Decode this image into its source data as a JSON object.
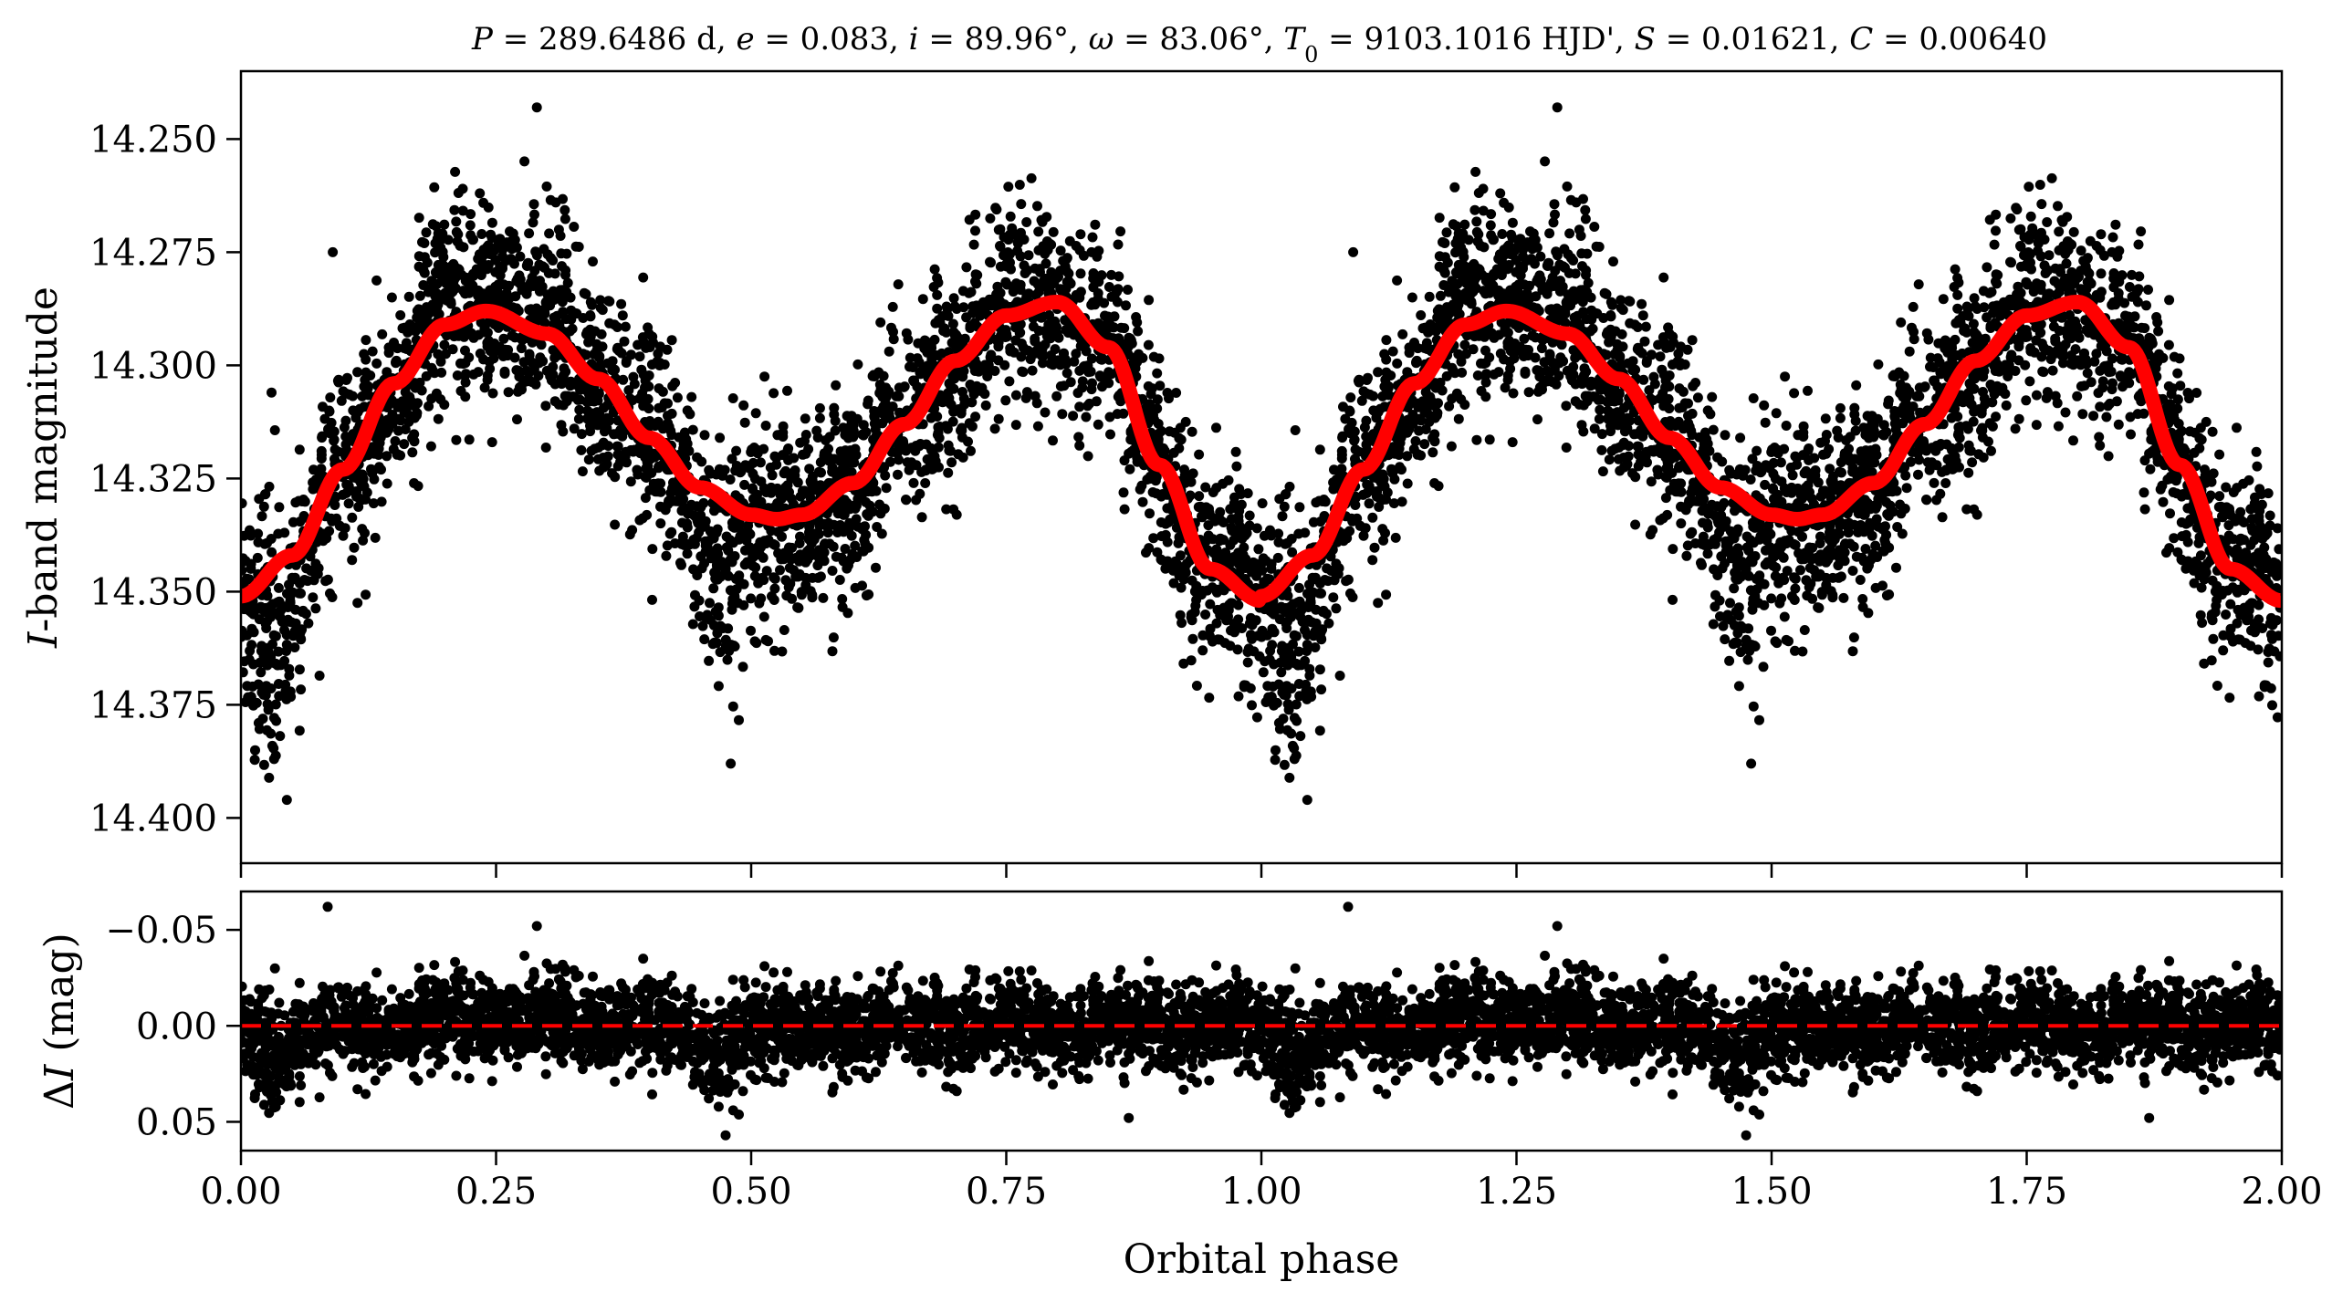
{
  "chart_data": [
    {
      "type": "scatter",
      "panel": "light-curve",
      "title": "P = 289.6486 d, e = 0.083, i = 89.96°, ω = 83.06°, T0 = 9103.1016 HJD', S = 0.01621, C = 0.00640",
      "xlabel": "",
      "ylabel": "I-band magnitude",
      "xlim": [
        0.0,
        2.0
      ],
      "ylim": [
        14.41,
        14.235
      ],
      "y_inverted": true,
      "x_ticks": [
        0.0,
        0.25,
        0.5,
        0.75,
        1.0,
        1.25,
        1.5,
        1.75,
        2.0
      ],
      "y_ticks": [
        14.25,
        14.275,
        14.3,
        14.325,
        14.35,
        14.375,
        14.4
      ],
      "y_tick_labels": [
        "14.250",
        "14.275",
        "14.300",
        "14.325",
        "14.350",
        "14.375",
        "14.400"
      ],
      "series": [
        {
          "kind": "points",
          "color": "#000000",
          "description_values": "phase-folded observations, scatter ~0.03 mag around model",
          "x": [
            0.0,
            0.05,
            0.1,
            0.15,
            0.2,
            0.25,
            0.3,
            0.35,
            0.4,
            0.45,
            0.5,
            0.55,
            0.6,
            0.65,
            0.7,
            0.75,
            0.8,
            0.85,
            0.9,
            0.95,
            1.0
          ],
          "y": [
            14.35,
            14.34,
            14.32,
            14.3,
            14.29,
            14.288,
            14.292,
            14.302,
            14.315,
            14.326,
            14.333,
            14.331,
            14.322,
            14.307,
            14.293,
            14.286,
            14.288,
            14.302,
            14.326,
            14.347,
            14.352
          ]
        },
        {
          "kind": "model",
          "color": "#ff0000",
          "x": [
            0.0,
            0.05,
            0.1,
            0.15,
            0.2,
            0.24,
            0.3,
            0.35,
            0.4,
            0.45,
            0.5,
            0.525,
            0.55,
            0.6,
            0.65,
            0.7,
            0.75,
            0.8,
            0.85,
            0.9,
            0.95,
            1.0
          ],
          "y": [
            14.351,
            14.342,
            14.323,
            14.304,
            14.291,
            14.288,
            14.293,
            14.303,
            14.316,
            14.327,
            14.333,
            14.334,
            14.333,
            14.326,
            14.313,
            14.299,
            14.289,
            14.286,
            14.296,
            14.322,
            14.345,
            14.352
          ]
        }
      ],
      "outliers": [
        {
          "x": 0.29,
          "y": 14.243
        },
        {
          "x": 1.29,
          "y": 14.243
        },
        {
          "x": 0.09,
          "y": 14.275
        },
        {
          "x": 1.09,
          "y": 14.275
        },
        {
          "x": 0.045,
          "y": 14.396
        },
        {
          "x": 1.045,
          "y": 14.396
        },
        {
          "x": 0.03,
          "y": 14.306
        },
        {
          "x": 0.48,
          "y": 14.388
        },
        {
          "x": 1.48,
          "y": 14.388
        }
      ]
    },
    {
      "type": "scatter",
      "panel": "residuals",
      "title": "",
      "xlabel": "Orbital phase",
      "ylabel": "ΔI (mag)",
      "xlim": [
        0.0,
        2.0
      ],
      "ylim": [
        0.065,
        -0.07
      ],
      "y_inverted": true,
      "x_ticks": [
        0.0,
        0.25,
        0.5,
        0.75,
        1.0,
        1.25,
        1.5,
        1.75,
        2.0
      ],
      "x_tick_labels": [
        "0.00",
        "0.25",
        "0.50",
        "0.75",
        "1.00",
        "1.25",
        "1.50",
        "1.75",
        "2.00"
      ],
      "y_ticks": [
        -0.05,
        0.0,
        0.05
      ],
      "y_tick_labels": [
        "−0.05",
        "0.00",
        "0.05"
      ],
      "series": [
        {
          "kind": "points",
          "color": "#000000",
          "x": [
            0.0,
            0.25,
            0.5,
            0.75,
            1.0,
            1.25,
            1.5,
            1.75,
            2.0
          ],
          "y": [
            0.0,
            0.0,
            0.0,
            0.0,
            0.0,
            0.0,
            0.0,
            0.0,
            0.0
          ],
          "scatter_range": [
            -0.035,
            0.045
          ]
        },
        {
          "kind": "zero-line",
          "color": "#ff0000",
          "style": "dashed",
          "y": 0.0
        }
      ],
      "outliers": [
        {
          "x": 0.085,
          "y": -0.062
        },
        {
          "x": 1.085,
          "y": -0.062
        },
        {
          "x": 0.29,
          "y": -0.052
        },
        {
          "x": 1.29,
          "y": -0.052
        },
        {
          "x": 0.475,
          "y": 0.057
        },
        {
          "x": 1.475,
          "y": 0.057
        },
        {
          "x": 0.87,
          "y": 0.048
        },
        {
          "x": 1.87,
          "y": 0.048
        }
      ]
    }
  ],
  "labels": {
    "title_parts": {
      "P": "P",
      "P_value": " = 289.6486 d, ",
      "e": "e",
      "e_value": " = 0.083, ",
      "i": "i",
      "i_value": " = 89.96°, ",
      "omega": "ω",
      "omega_value": " = 83.06°, ",
      "T": "T",
      "T_sub": "0",
      "T_value": " = 9103.1016 HJD', ",
      "S": "S",
      "S_value": " = 0.01621, ",
      "C": "C",
      "C_value": " = 0.00640"
    },
    "ylabel_top_italic": "I",
    "ylabel_top_rest": "-band magnitude",
    "ylabel_bottom_delta": "Δ",
    "ylabel_bottom_italic": "I",
    "ylabel_bottom_rest": " (mag)",
    "xlabel": "Orbital phase"
  }
}
